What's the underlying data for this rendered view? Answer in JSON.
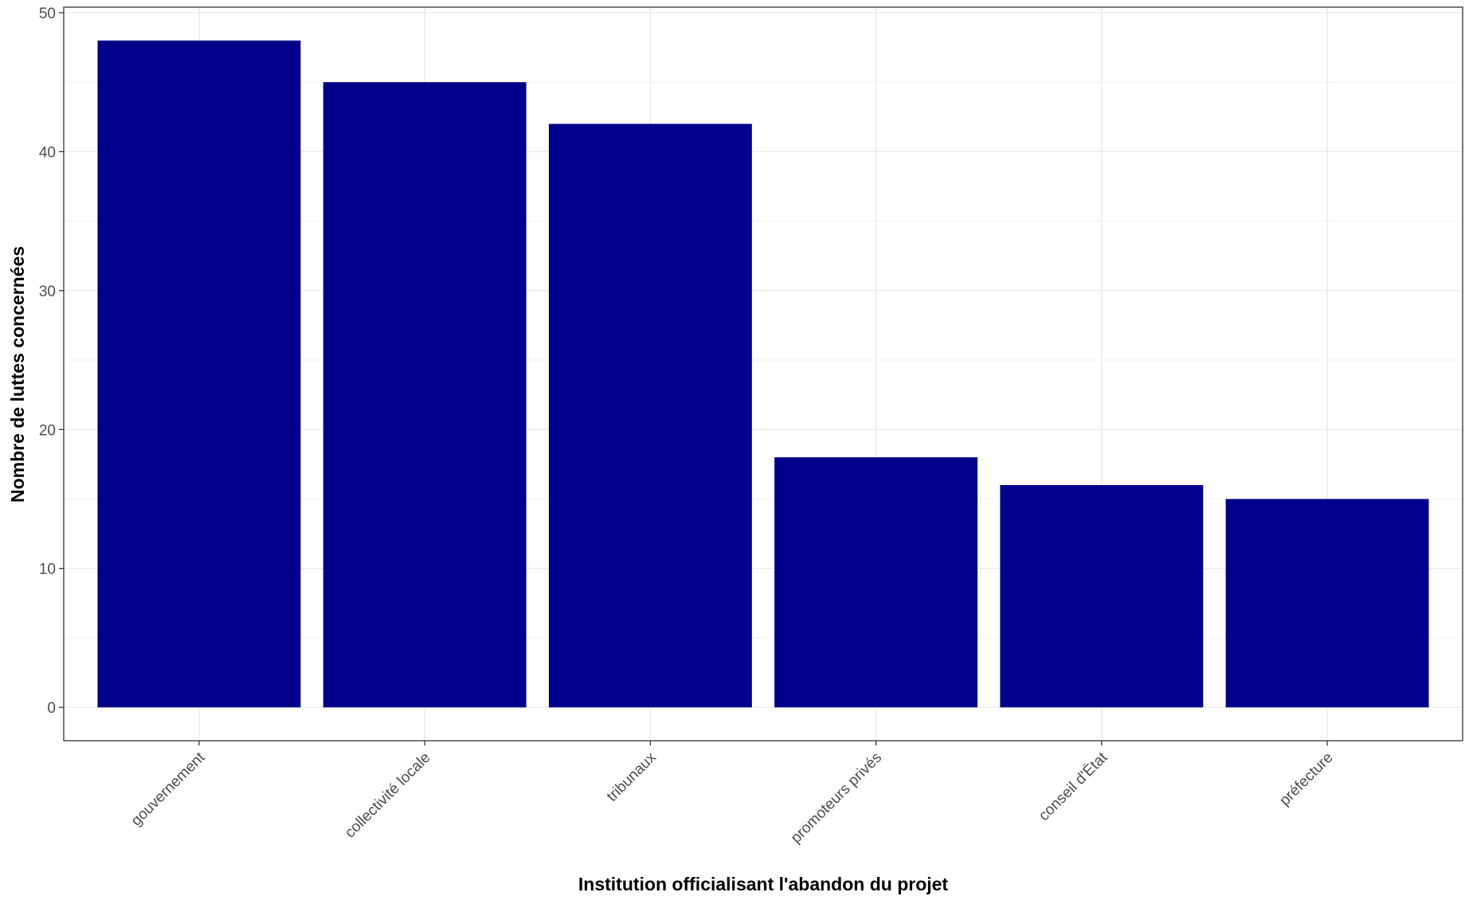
{
  "chart_data": {
    "type": "bar",
    "x_label": "Institution officialisant l'abandon du projet",
    "y_label": "Nombre de luttes concernées",
    "categories": [
      "gouvernement",
      "collectivité locale",
      "tribunaux",
      "promoteurs privés",
      "conseil d'État",
      "préfecture"
    ],
    "values": [
      48,
      45,
      42,
      18,
      16,
      15
    ],
    "color": "#00008b",
    "ylim": [
      -2.4,
      50.4
    ],
    "yticks": [
      0,
      10,
      20,
      30,
      40,
      50
    ],
    "grid": true
  }
}
